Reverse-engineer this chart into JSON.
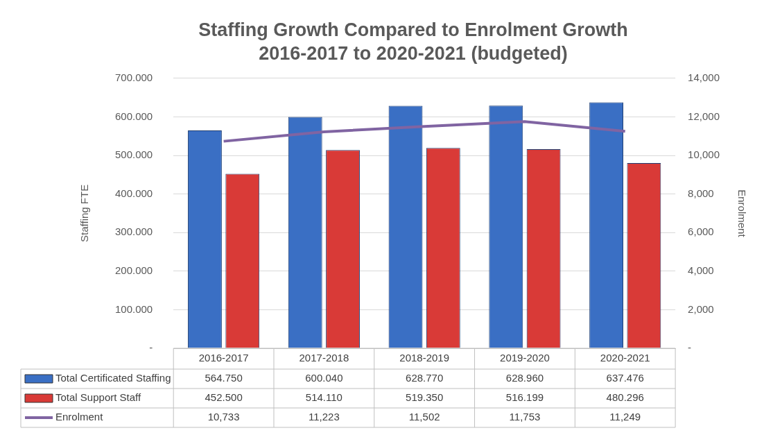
{
  "chart_data": {
    "type": "bar",
    "title": "Staffing Growth Compared to Enrolment Growth",
    "subtitle": "2016-2017 to 2020-2021 (budgeted)",
    "ylabel": "Staffing FTE",
    "y2label": "Enrolment",
    "categories": [
      "2016-2017",
      "2017-2018",
      "2018-2019",
      "2019-2020",
      "2020-2021"
    ],
    "series": [
      {
        "name": "Total Certificated Staffing",
        "color": "#3a6fc4",
        "values": [
          564.75,
          600.04,
          628.77,
          628.96,
          637.476
        ],
        "value_labels": [
          "564.750",
          "600.040",
          "628.770",
          "628.960",
          "637.476"
        ]
      },
      {
        "name": "Total Support Staff",
        "color": "#d93a37",
        "values": [
          452.5,
          514.11,
          519.35,
          516.199,
          480.296
        ],
        "value_labels": [
          "452.500",
          "514.110",
          "519.350",
          "516.199",
          "480.296"
        ]
      },
      {
        "name": "Enrolment",
        "type": "line",
        "axis": "y2",
        "color": "#8064a2",
        "values": [
          10733,
          11223,
          11502,
          11753,
          11249
        ],
        "value_labels": [
          "10,733",
          "11,223",
          "11,502",
          "11,753",
          "11,249"
        ]
      }
    ],
    "ylim": [
      0,
      700
    ],
    "yticks": [
      {
        "value": 0,
        "label": "-"
      },
      {
        "value": 100,
        "label": "100.000"
      },
      {
        "value": 200,
        "label": "200.000"
      },
      {
        "value": 300,
        "label": "300.000"
      },
      {
        "value": 400,
        "label": "400.000"
      },
      {
        "value": 500,
        "label": "500.000"
      },
      {
        "value": 600,
        "label": "600.000"
      },
      {
        "value": 700,
        "label": "700.000"
      }
    ],
    "y2lim": [
      0,
      14000
    ],
    "y2ticks": [
      {
        "value": 0,
        "label": "-"
      },
      {
        "value": 2000,
        "label": "2,000"
      },
      {
        "value": 4000,
        "label": "4,000"
      },
      {
        "value": 6000,
        "label": "6,000"
      },
      {
        "value": 8000,
        "label": "8,000"
      },
      {
        "value": 10000,
        "label": "10,000"
      },
      {
        "value": 12000,
        "label": "12,000"
      },
      {
        "value": 14000,
        "label": "14,000"
      }
    ],
    "grid": "y",
    "legend": "bottom",
    "marker": "none"
  }
}
